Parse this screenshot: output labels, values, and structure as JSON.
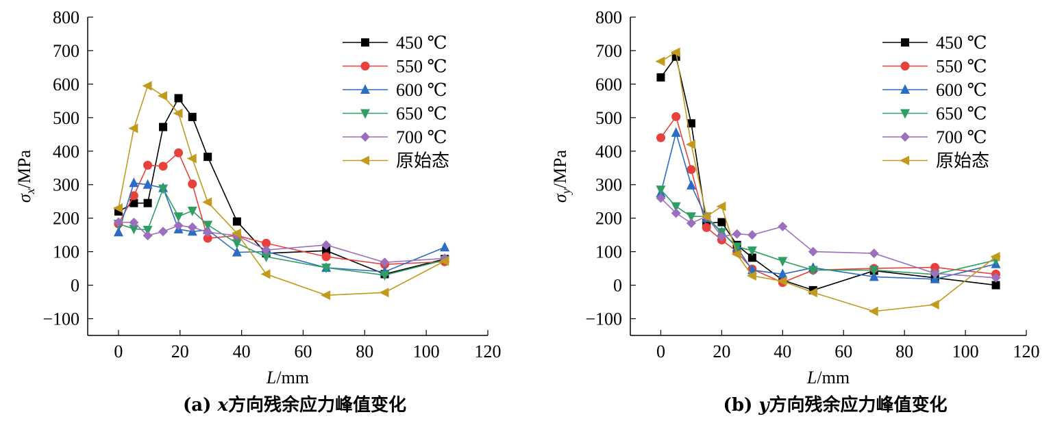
{
  "chart_data": [
    {
      "type": "line",
      "caption": "(a) x方向残余应力峰值变化",
      "caption_prefix": "(a) ",
      "caption_var": "x",
      "caption_suffix": "方向残余应力峰值变化",
      "xlabel": "L/mm",
      "xlabel_var": "L",
      "xlabel_unit": "/mm",
      "ylabel": "σx/MPa",
      "ylabel_var": "σ",
      "ylabel_sub": "x",
      "ylabel_unit": "/MPa",
      "xlim": [
        -10,
        120
      ],
      "ylim": [
        -150,
        800
      ],
      "xticks": [
        0,
        20,
        40,
        60,
        80,
        100,
        120
      ],
      "yticks": [
        -100,
        0,
        100,
        200,
        300,
        400,
        500,
        600,
        700,
        800
      ],
      "legend_position": "top-right",
      "series": [
        {
          "name": "450 ℃",
          "color": "#000000",
          "marker": "square",
          "x": [
            0,
            5,
            9.5,
            14.5,
            19.5,
            24,
            29,
            38.5,
            48,
            67.5,
            86.5,
            106
          ],
          "y": [
            220,
            245,
            245,
            472,
            558,
            502,
            383,
            190,
            95,
            103,
            33,
            78
          ]
        },
        {
          "name": "550 ℃",
          "color": "#e8403a",
          "marker": "circle",
          "x": [
            0,
            5,
            9.5,
            14.5,
            19.5,
            24,
            29,
            38.5,
            48,
            67.5,
            86.5,
            106
          ],
          "y": [
            183,
            267,
            358,
            355,
            395,
            302,
            140,
            148,
            125,
            85,
            62,
            70
          ]
        },
        {
          "name": "600 ℃",
          "color": "#2b6cc4",
          "marker": "triangle-up",
          "x": [
            0,
            5,
            9.5,
            14.5,
            19.5,
            24,
            29,
            38.5,
            48,
            67.5,
            86.5,
            106
          ],
          "y": [
            158,
            305,
            300,
            290,
            167,
            160,
            165,
            98,
            100,
            52,
            40,
            113
          ]
        },
        {
          "name": "650 ℃",
          "color": "#2e9e62",
          "marker": "triangle-down",
          "x": [
            0,
            5,
            9.5,
            14.5,
            19.5,
            24,
            29,
            38.5,
            48,
            67.5,
            86.5,
            106
          ],
          "y": [
            183,
            168,
            165,
            288,
            205,
            222,
            180,
            125,
            85,
            52,
            30,
            75
          ]
        },
        {
          "name": "700 ℃",
          "color": "#9b6fbd",
          "marker": "diamond",
          "x": [
            0,
            5,
            9.5,
            14.5,
            19.5,
            24,
            29,
            38.5,
            48,
            67.5,
            86.5,
            106
          ],
          "y": [
            188,
            187,
            148,
            160,
            178,
            173,
            158,
            148,
            105,
            120,
            68,
            80
          ]
        },
        {
          "name": "原始态",
          "color": "#c19a1e",
          "marker": "triangle-left",
          "x": [
            0,
            5,
            9.5,
            14.5,
            19.5,
            24,
            29,
            38.5,
            48,
            67.5,
            86.5,
            106
          ],
          "y": [
            230,
            468,
            595,
            565,
            513,
            378,
            248,
            155,
            33,
            -30,
            -22,
            72
          ]
        }
      ]
    },
    {
      "type": "line",
      "caption": "(b) y方向残余应力峰值变化",
      "caption_prefix": "(b) ",
      "caption_var": "y",
      "caption_suffix": "方向残余应力峰值变化",
      "xlabel": "L/mm",
      "xlabel_var": "L",
      "xlabel_unit": "/mm",
      "ylabel": "σy/MPa",
      "ylabel_var": "σ",
      "ylabel_sub": "y",
      "ylabel_unit": "/MPa",
      "xlim": [
        -10,
        120
      ],
      "ylim": [
        -150,
        800
      ],
      "xticks": [
        0,
        20,
        40,
        60,
        80,
        100,
        120
      ],
      "yticks": [
        -100,
        0,
        100,
        200,
        300,
        400,
        500,
        600,
        700,
        800
      ],
      "legend_position": "top-right",
      "series": [
        {
          "name": "450 ℃",
          "color": "#000000",
          "marker": "square",
          "x": [
            0,
            5,
            10,
            15,
            20,
            25,
            30,
            40,
            50,
            70,
            90,
            110
          ],
          "y": [
            620,
            682,
            483,
            185,
            188,
            120,
            82,
            15,
            -15,
            43,
            22,
            0
          ]
        },
        {
          "name": "550 ℃",
          "color": "#e8403a",
          "marker": "circle",
          "x": [
            0,
            5,
            10,
            15,
            20,
            25,
            30,
            40,
            50,
            70,
            90,
            110
          ],
          "y": [
            440,
            503,
            345,
            172,
            135,
            100,
            48,
            8,
            45,
            50,
            53,
            33
          ]
        },
        {
          "name": "600 ℃",
          "color": "#2b6cc4",
          "marker": "triangle-up",
          "x": [
            0,
            5,
            10,
            15,
            20,
            25,
            30,
            40,
            50,
            70,
            90,
            110
          ],
          "y": [
            275,
            455,
            298,
            200,
            158,
            113,
            45,
            33,
            52,
            25,
            18,
            63
          ]
        },
        {
          "name": "650 ℃",
          "color": "#2e9e62",
          "marker": "triangle-down",
          "x": [
            0,
            5,
            10,
            15,
            20,
            25,
            30,
            40,
            50,
            70,
            90,
            110
          ],
          "y": [
            285,
            235,
            205,
            205,
            158,
            115,
            103,
            72,
            45,
            45,
            32,
            75
          ]
        },
        {
          "name": "700 ℃",
          "color": "#9b6fbd",
          "marker": "diamond",
          "x": [
            0,
            5,
            10,
            15,
            20,
            25,
            30,
            40,
            50,
            70,
            90,
            110
          ],
          "y": [
            260,
            215,
            185,
            205,
            145,
            153,
            150,
            175,
            100,
            95,
            35,
            22
          ]
        },
        {
          "name": "原始态",
          "color": "#c19a1e",
          "marker": "triangle-left",
          "x": [
            0,
            5,
            10,
            15,
            20,
            25,
            30,
            40,
            50,
            70,
            90,
            110
          ],
          "y": [
            668,
            695,
            420,
            205,
            235,
            92,
            28,
            12,
            -22,
            -78,
            -58,
            85
          ]
        }
      ]
    }
  ]
}
